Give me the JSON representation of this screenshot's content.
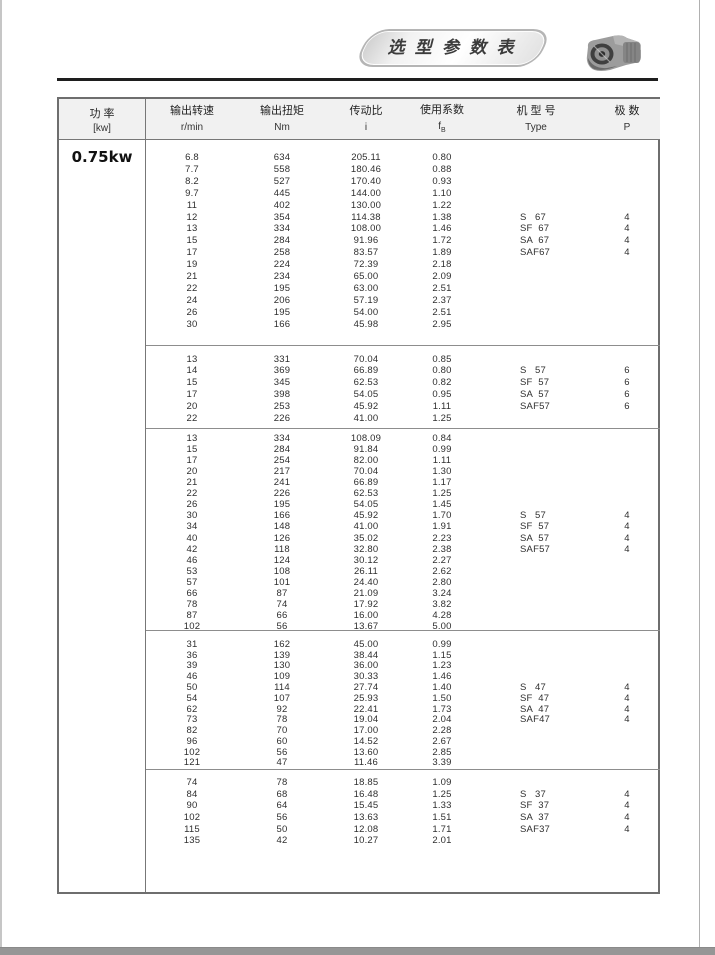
{
  "page": {
    "banner_title": "选 型 参 数 表",
    "edge_bar_color": "#969696"
  },
  "table": {
    "power_label": "0.75kw",
    "header": {
      "power_cn": "功  率",
      "power_unit": "[kw]",
      "cols": [
        {
          "cn": "输出转速",
          "en": "r/min"
        },
        {
          "cn": "输出扭矩",
          "en": "Nm"
        },
        {
          "cn": "传动比",
          "en": "i"
        },
        {
          "cn": "使用系数",
          "en_main": "f",
          "en_sub": "B"
        },
        {
          "cn": "机 型 号",
          "en": "Type"
        },
        {
          "cn": "极  数",
          "en": "P"
        }
      ]
    },
    "blocks": [
      {
        "rows": [
          [
            "6.8",
            "634",
            "205.11",
            "0.80",
            "",
            ""
          ],
          [
            "7.7",
            "558",
            "180.46",
            "0.88",
            "",
            ""
          ],
          [
            "8.2",
            "527",
            "170.40",
            "0.93",
            "",
            ""
          ],
          [
            "9.7",
            "445",
            "144.00",
            "1.10",
            "",
            ""
          ],
          [
            "11",
            "402",
            "130.00",
            "1.22",
            "",
            ""
          ],
          [
            "12",
            "354",
            "114.38",
            "1.38",
            "S   67",
            "4"
          ],
          [
            "13",
            "334",
            "108.00",
            "1.46",
            "SF  67",
            "4"
          ],
          [
            "15",
            "284",
            "91.96",
            "1.72",
            "SA  67",
            "4"
          ],
          [
            "17",
            "258",
            "83.57",
            "1.89",
            "SAF67",
            "4"
          ],
          [
            "19",
            "224",
            "72.39",
            "2.18",
            "",
            ""
          ],
          [
            "21",
            "234",
            "65.00",
            "2.09",
            "",
            ""
          ],
          [
            "22",
            "195",
            "63.00",
            "2.51",
            "",
            ""
          ],
          [
            "24",
            "206",
            "57.19",
            "2.37",
            "",
            ""
          ],
          [
            "26",
            "195",
            "54.00",
            "2.51",
            "",
            ""
          ],
          [
            "30",
            "166",
            "45.98",
            "2.95",
            "",
            ""
          ]
        ]
      },
      {
        "rows": [
          [
            "13",
            "331",
            "70.04",
            "0.85",
            "",
            ""
          ],
          [
            "14",
            "369",
            "66.89",
            "0.80",
            "S   57",
            "6"
          ],
          [
            "15",
            "345",
            "62.53",
            "0.82",
            "SF  57",
            "6"
          ],
          [
            "17",
            "398",
            "54.05",
            "0.95",
            "SA  57",
            "6"
          ],
          [
            "20",
            "253",
            "45.92",
            "1.11",
            "SAF57",
            "6"
          ],
          [
            "22",
            "226",
            "41.00",
            "1.25",
            "",
            ""
          ]
        ]
      },
      {
        "rows": [
          [
            "13",
            "334",
            "108.09",
            "0.84",
            "",
            ""
          ],
          [
            "15",
            "284",
            "91.84",
            "0.99",
            "",
            ""
          ],
          [
            "17",
            "254",
            "82.00",
            "1.11",
            "",
            ""
          ],
          [
            "20",
            "217",
            "70.04",
            "1.30",
            "",
            ""
          ],
          [
            "21",
            "241",
            "66.89",
            "1.17",
            "",
            ""
          ],
          [
            "22",
            "226",
            "62.53",
            "1.25",
            "",
            ""
          ],
          [
            "26",
            "195",
            "54.05",
            "1.45",
            "",
            ""
          ],
          [
            "30",
            "166",
            "45.92",
            "1.70",
            "S   57",
            "4"
          ],
          [
            "34",
            "148",
            "41.00",
            "1.91",
            "SF  57",
            "4"
          ],
          [
            "40",
            "126",
            "35.02",
            "2.23",
            "SA  57",
            "4"
          ],
          [
            "42",
            "118",
            "32.80",
            "2.38",
            "SAF57",
            "4"
          ],
          [
            "46",
            "124",
            "30.12",
            "2.27",
            "",
            ""
          ],
          [
            "53",
            "108",
            "26.11",
            "2.62",
            "",
            ""
          ],
          [
            "57",
            "101",
            "24.40",
            "2.80",
            "",
            ""
          ],
          [
            "66",
            "87",
            "21.09",
            "3.24",
            "",
            ""
          ],
          [
            "78",
            "74",
            "17.92",
            "3.82",
            "",
            ""
          ],
          [
            "87",
            "66",
            "16.00",
            "4.28",
            "",
            ""
          ],
          [
            "102",
            "56",
            "13.67",
            "5.00",
            "",
            ""
          ]
        ]
      },
      {
        "rows": [
          [
            "31",
            "162",
            "45.00",
            "0.99",
            "",
            ""
          ],
          [
            "36",
            "139",
            "38.44",
            "1.15",
            "",
            ""
          ],
          [
            "39",
            "130",
            "36.00",
            "1.23",
            "",
            ""
          ],
          [
            "46",
            "109",
            "30.33",
            "1.46",
            "",
            ""
          ],
          [
            "50",
            "114",
            "27.74",
            "1.40",
            "S   47",
            "4"
          ],
          [
            "54",
            "107",
            "25.93",
            "1.50",
            "SF  47",
            "4"
          ],
          [
            "62",
            "92",
            "22.41",
            "1.73",
            "SA  47",
            "4"
          ],
          [
            "73",
            "78",
            "19.04",
            "2.04",
            "SAF47",
            "4"
          ],
          [
            "82",
            "70",
            "17.00",
            "2.28",
            "",
            ""
          ],
          [
            "96",
            "60",
            "14.52",
            "2.67",
            "",
            ""
          ],
          [
            "102",
            "56",
            "13.60",
            "2.85",
            "",
            ""
          ],
          [
            "121",
            "47",
            "11.46",
            "3.39",
            "",
            ""
          ]
        ]
      },
      {
        "rows": [
          [
            "74",
            "78",
            "18.85",
            "1.09",
            "",
            ""
          ],
          [
            "84",
            "68",
            "16.48",
            "1.25",
            "S   37",
            "4"
          ],
          [
            "90",
            "64",
            "15.45",
            "1.33",
            "SF  37",
            "4"
          ],
          [
            "102",
            "56",
            "13.63",
            "1.51",
            "SA  37",
            "4"
          ],
          [
            "115",
            "50",
            "12.08",
            "1.71",
            "SAF37",
            "4"
          ],
          [
            "135",
            "42",
            "10.27",
            "2.01",
            "",
            ""
          ]
        ]
      }
    ]
  }
}
